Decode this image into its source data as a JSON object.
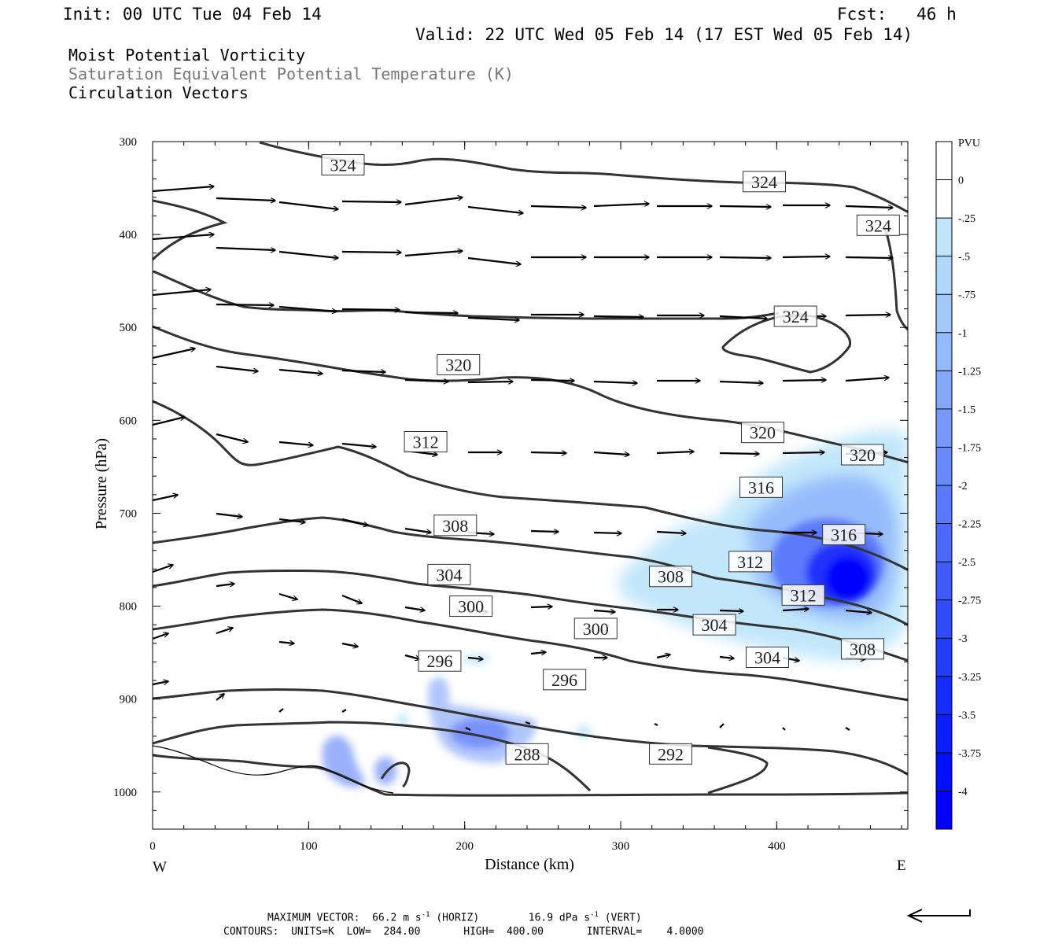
{
  "header": {
    "init": "Init: 00 UTC Tue 04 Feb 14",
    "fcst": "Fcst:   46 h",
    "valid": "Valid: 22 UTC Wed 05 Feb 14 (17 EST Wed 05 Feb 14)"
  },
  "titles": [
    "Moist Potential Vorticity",
    "Saturation Equivalent Potential Temperature (K)",
    "Circulation Vectors"
  ],
  "footer": {
    "max_vector_label": "MAXIMUM VECTOR:",
    "horiz": "66.2 m s",
    "horiz_unit": "(HORIZ)",
    "vert": "16.9 dPa s",
    "vert_unit": "(VERT)",
    "exp": "-1",
    "contours": "CONTOURS:  UNITS=K  LOW=  284.00       HIGH=  400.00       INTERVAL=    4.0000"
  },
  "colors": {
    "contour": "#333333",
    "vector": "#000000",
    "pvu_ramp": [
      "#ffffff",
      "#ffffff",
      "#bfe6fb",
      "#b0d6fb",
      "#a1c7fb",
      "#93b8fb",
      "#85a8fb",
      "#7799fb",
      "#698afb",
      "#5b7afb",
      "#4d6bfb",
      "#3f5cfb",
      "#314cfb",
      "#233dfb",
      "#152efc",
      "#0a1ffd",
      "#0010fe",
      "#0000ff"
    ]
  },
  "chart_data": {
    "type": "cross-section",
    "xlabel": "Distance (km)",
    "ylabel": "Pressure (hPa)",
    "xlim": [
      0,
      484
    ],
    "ylim": [
      300,
      1040
    ],
    "x_ticks": [
      0,
      100,
      200,
      300,
      400
    ],
    "y_ticks": [
      300,
      400,
      500,
      600,
      700,
      800,
      900,
      1000
    ],
    "x_end_labels": {
      "left": "W",
      "right": "E"
    },
    "colorbar": {
      "title": "PVU",
      "labels": [
        "0",
        "-.25",
        "-.5",
        "-.75",
        "-1",
        "-1.25",
        "-1.5",
        "-1.75",
        "-2",
        "-2.25",
        "-2.5",
        "-2.75",
        "-3",
        "-3.25",
        "-3.5",
        "-3.75",
        "-4"
      ]
    },
    "contour_labels": [
      {
        "text": "324",
        "x": 122,
        "p": 325
      },
      {
        "text": "324",
        "x": 392,
        "p": 343
      },
      {
        "text": "324",
        "x": 465,
        "p": 390
      },
      {
        "text": "324",
        "x": 412,
        "p": 488
      },
      {
        "text": "320",
        "x": 196,
        "p": 540
      },
      {
        "text": "320",
        "x": 391,
        "p": 613
      },
      {
        "text": "320",
        "x": 455,
        "p": 637
      },
      {
        "text": "316",
        "x": 390,
        "p": 672
      },
      {
        "text": "316",
        "x": 443,
        "p": 723
      },
      {
        "text": "312",
        "x": 175,
        "p": 623
      },
      {
        "text": "312",
        "x": 383,
        "p": 752
      },
      {
        "text": "312",
        "x": 417,
        "p": 788
      },
      {
        "text": "308",
        "x": 194,
        "p": 713
      },
      {
        "text": "308",
        "x": 332,
        "p": 768
      },
      {
        "text": "308",
        "x": 455,
        "p": 846
      },
      {
        "text": "304",
        "x": 190,
        "p": 766
      },
      {
        "text": "304",
        "x": 360,
        "p": 820
      },
      {
        "text": "304",
        "x": 394,
        "p": 855
      },
      {
        "text": "300",
        "x": 204,
        "p": 800
      },
      {
        "text": "300",
        "x": 284,
        "p": 824
      },
      {
        "text": "296",
        "x": 184,
        "p": 859
      },
      {
        "text": "296",
        "x": 264,
        "p": 879
      },
      {
        "text": "292",
        "x": 332,
        "p": 959
      },
      {
        "text": "288",
        "x": 240,
        "p": 959
      }
    ]
  }
}
